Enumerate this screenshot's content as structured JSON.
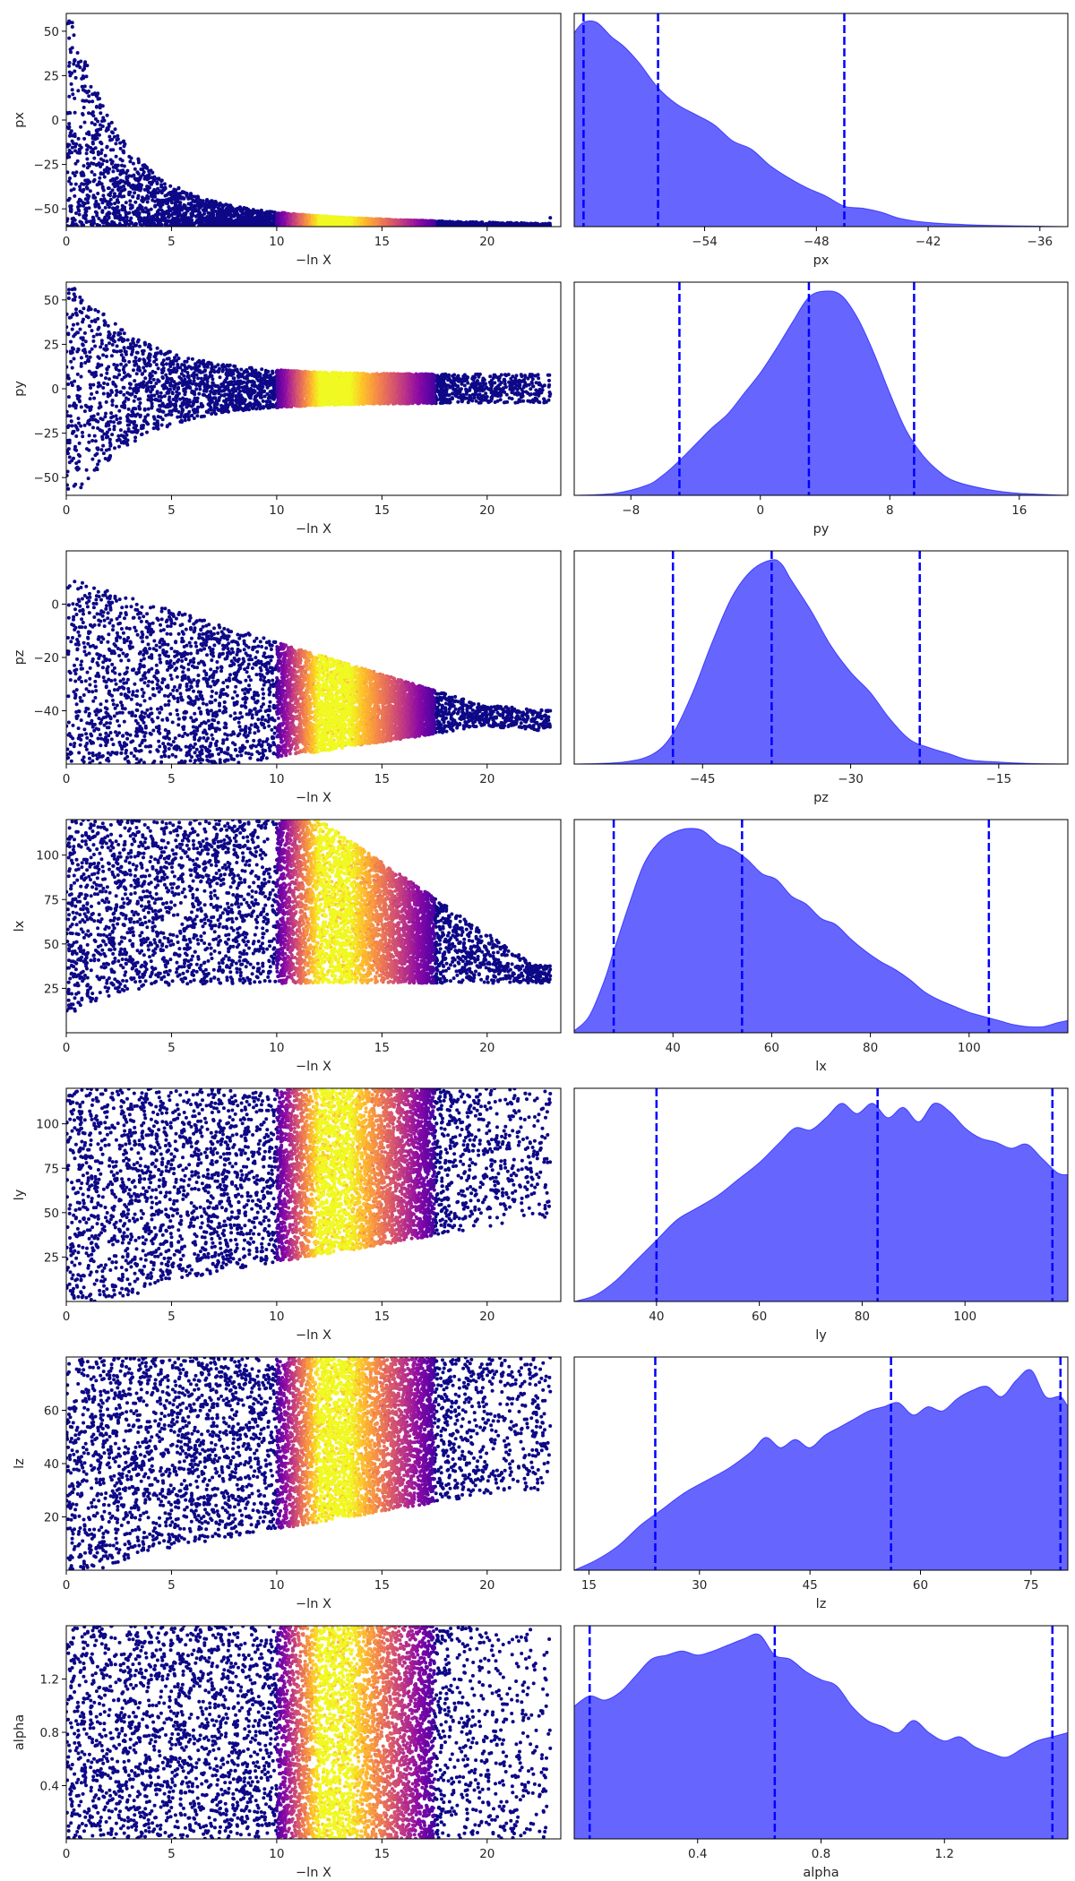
{
  "chart_data": [
    {
      "type": "scatter",
      "name": "trace-px",
      "ylabel": "px",
      "xlabel": "−ln X",
      "xlim": [
        0,
        23.5
      ],
      "ylim": [
        -60,
        60
      ],
      "xticks": [
        0,
        5,
        10,
        15,
        20
      ],
      "yticks": [
        -50,
        -25,
        0,
        25,
        50
      ],
      "ytick_labels": [
        "−50",
        "−25",
        "0",
        "25",
        "50"
      ],
      "colormap": "plasma",
      "highlight_range": [
        10,
        18
      ],
      "max_x": 23
    },
    {
      "type": "area",
      "name": "posterior-px",
      "xlabel": "px",
      "xlim": [
        -61,
        -34.5
      ],
      "xticks": [
        -54,
        -48,
        -42,
        -36
      ],
      "xtick_labels": [
        "−54",
        "−48",
        "−42",
        "−36"
      ],
      "quantiles": [
        -60.5,
        -56.5,
        -46.5
      ],
      "fill_color": "#6666ff",
      "line_color": "#0000ff",
      "density": {
        "x": [
          -61,
          -60.5,
          -59.8,
          -59,
          -58.3,
          -57.5,
          -56.5,
          -55.5,
          -54.5,
          -53.5,
          -52.5,
          -51.5,
          -50.5,
          -49.5,
          -48.5,
          -47.5,
          -46.5,
          -45.5,
          -44.5,
          -43.5,
          -42,
          -40,
          -38,
          -36,
          -34.5
        ],
        "y": [
          0.95,
          1.0,
          1.0,
          0.93,
          0.88,
          0.8,
          0.68,
          0.6,
          0.55,
          0.5,
          0.42,
          0.38,
          0.3,
          0.24,
          0.19,
          0.15,
          0.1,
          0.09,
          0.07,
          0.04,
          0.02,
          0.01,
          0.005,
          0.002,
          0
        ]
      }
    },
    {
      "type": "scatter",
      "name": "trace-py",
      "ylabel": "py",
      "xlabel": "−ln X",
      "xlim": [
        0,
        23.5
      ],
      "ylim": [
        -60,
        60
      ],
      "xticks": [
        0,
        5,
        10,
        15,
        20
      ],
      "yticks": [
        -50,
        -25,
        0,
        25,
        50
      ],
      "ytick_labels": [
        "−50",
        "−25",
        "0",
        "25",
        "50"
      ],
      "colormap": "plasma",
      "highlight_range": [
        10,
        18
      ],
      "max_x": 23
    },
    {
      "type": "area",
      "name": "posterior-py",
      "xlabel": "py",
      "xlim": [
        -11.5,
        19
      ],
      "xticks": [
        -8,
        0,
        8,
        16
      ],
      "xtick_labels": [
        "−8",
        "0",
        "8",
        "16"
      ],
      "quantiles": [
        -5,
        3,
        9.5
      ],
      "fill_color": "#6666ff",
      "line_color": "#0000ff",
      "density": {
        "x": [
          -11.5,
          -9,
          -7,
          -6,
          -5,
          -4,
          -3,
          -2,
          -1,
          0,
          1,
          2,
          3,
          4,
          5,
          6,
          7,
          8,
          9,
          10,
          11,
          12,
          14,
          16,
          19
        ],
        "y": [
          0,
          0.01,
          0.05,
          0.1,
          0.17,
          0.25,
          0.33,
          0.4,
          0.5,
          0.6,
          0.72,
          0.85,
          0.97,
          1.0,
          0.98,
          0.87,
          0.7,
          0.5,
          0.32,
          0.2,
          0.12,
          0.07,
          0.03,
          0.01,
          0
        ]
      }
    },
    {
      "type": "scatter",
      "name": "trace-pz",
      "ylabel": "pz",
      "xlabel": "−ln X",
      "xlim": [
        0,
        23.5
      ],
      "ylim": [
        -60,
        20
      ],
      "xticks": [
        0,
        5,
        10,
        15,
        20
      ],
      "yticks": [
        -40,
        -20,
        0
      ],
      "ytick_labels": [
        "−40",
        "−20",
        "0"
      ],
      "colormap": "plasma",
      "highlight_range": [
        10,
        18
      ],
      "max_x": 23
    },
    {
      "type": "area",
      "name": "posterior-pz",
      "xlabel": "pz",
      "xlim": [
        -58,
        -8
      ],
      "xticks": [
        -45,
        -30,
        -15
      ],
      "xtick_labels": [
        "−45",
        "−30",
        "−15"
      ],
      "quantiles": [
        -48,
        -38,
        -23
      ],
      "fill_color": "#6666ff",
      "line_color": "#0000ff",
      "density": {
        "x": [
          -58,
          -53,
          -50,
          -48,
          -46,
          -44,
          -42,
          -40,
          -38,
          -37,
          -36,
          -34,
          -32,
          -30,
          -28,
          -26,
          -24,
          -22,
          -20,
          -18,
          -15,
          -12,
          -8
        ],
        "y": [
          0,
          0.01,
          0.05,
          0.15,
          0.35,
          0.6,
          0.82,
          0.95,
          1.0,
          0.98,
          0.9,
          0.75,
          0.58,
          0.45,
          0.35,
          0.22,
          0.12,
          0.08,
          0.05,
          0.02,
          0.01,
          0.003,
          0
        ]
      }
    },
    {
      "type": "scatter",
      "name": "trace-lx",
      "ylabel": "lx",
      "xlabel": "−ln X",
      "xlim": [
        0,
        23.5
      ],
      "ylim": [
        0,
        120
      ],
      "xticks": [
        0,
        5,
        10,
        15,
        20
      ],
      "yticks": [
        25,
        50,
        75,
        100
      ],
      "ytick_labels": [
        "25",
        "50",
        "75",
        "100"
      ],
      "colormap": "plasma",
      "highlight_range": [
        10,
        18
      ],
      "max_x": 23
    },
    {
      "type": "area",
      "name": "posterior-lx",
      "xlabel": "lx",
      "xlim": [
        20,
        120
      ],
      "xticks": [
        40,
        60,
        80,
        100
      ],
      "xtick_labels": [
        "40",
        "60",
        "80",
        "100"
      ],
      "quantiles": [
        28,
        54,
        104
      ],
      "fill_color": "#6666ff",
      "line_color": "#0000ff",
      "density": {
        "x": [
          20,
          23,
          26,
          28,
          31,
          34,
          37,
          40,
          43,
          46,
          49,
          52,
          55,
          58,
          61,
          64,
          67,
          70,
          73,
          76,
          79,
          82,
          85,
          88,
          91,
          94,
          97,
          100,
          103,
          106,
          109,
          112,
          115,
          118,
          120
        ],
        "y": [
          0.01,
          0.08,
          0.25,
          0.4,
          0.62,
          0.82,
          0.93,
          0.98,
          1.0,
          0.99,
          0.93,
          0.9,
          0.85,
          0.78,
          0.75,
          0.67,
          0.63,
          0.56,
          0.53,
          0.46,
          0.4,
          0.35,
          0.31,
          0.26,
          0.2,
          0.16,
          0.13,
          0.1,
          0.08,
          0.06,
          0.04,
          0.03,
          0.03,
          0.05,
          0.06
        ]
      }
    },
    {
      "type": "scatter",
      "name": "trace-ly",
      "ylabel": "ly",
      "xlabel": "−ln X",
      "xlim": [
        0,
        23.5
      ],
      "ylim": [
        0,
        120
      ],
      "xticks": [
        0,
        5,
        10,
        15,
        20
      ],
      "yticks": [
        25,
        50,
        75,
        100
      ],
      "ytick_labels": [
        "25",
        "50",
        "75",
        "100"
      ],
      "colormap": "plasma",
      "highlight_range": [
        10,
        18
      ],
      "max_x": 23
    },
    {
      "type": "area",
      "name": "posterior-ly",
      "xlabel": "ly",
      "xlim": [
        24,
        120
      ],
      "xticks": [
        40,
        60,
        80,
        100
      ],
      "xtick_labels": [
        "40",
        "60",
        "80",
        "100"
      ],
      "quantiles": [
        40,
        83,
        117
      ],
      "fill_color": "#6666ff",
      "line_color": "#0000ff",
      "density": {
        "x": [
          24,
          28,
          32,
          36,
          40,
          44,
          48,
          52,
          56,
          60,
          64,
          67,
          70,
          73,
          76,
          79,
          82,
          85,
          88,
          91,
          94,
          97,
          100,
          103,
          106,
          109,
          112,
          115,
          118,
          120
        ],
        "y": [
          0,
          0.03,
          0.1,
          0.2,
          0.3,
          0.4,
          0.46,
          0.52,
          0.6,
          0.68,
          0.78,
          0.85,
          0.84,
          0.9,
          0.97,
          0.92,
          0.97,
          0.9,
          0.95,
          0.88,
          0.97,
          0.93,
          0.85,
          0.8,
          0.78,
          0.75,
          0.77,
          0.7,
          0.63,
          0.62
        ]
      }
    },
    {
      "type": "scatter",
      "name": "trace-lz",
      "ylabel": "lz",
      "xlabel": "−ln X",
      "xlim": [
        0,
        23.5
      ],
      "ylim": [
        0,
        80
      ],
      "xticks": [
        0,
        5,
        10,
        15,
        20
      ],
      "yticks": [
        20,
        40,
        60
      ],
      "ytick_labels": [
        "20",
        "40",
        "60"
      ],
      "colormap": "plasma",
      "highlight_range": [
        10,
        18
      ],
      "max_x": 23
    },
    {
      "type": "area",
      "name": "posterior-lz",
      "xlabel": "lz",
      "xlim": [
        13,
        80
      ],
      "xticks": [
        15,
        30,
        45,
        60,
        75
      ],
      "xtick_labels": [
        "15",
        "30",
        "45",
        "60",
        "75"
      ],
      "quantiles": [
        24,
        56,
        79
      ],
      "fill_color": "#6666ff",
      "line_color": "#0000ff",
      "density": {
        "x": [
          13,
          16,
          19,
          22,
          25,
          28,
          31,
          34,
          37,
          39,
          41,
          43,
          45,
          47,
          49,
          51,
          53,
          55,
          57,
          59,
          61,
          63,
          65,
          67,
          69,
          71,
          73,
          75,
          77,
          79,
          80
        ],
        "y": [
          0,
          0.05,
          0.12,
          0.22,
          0.3,
          0.38,
          0.44,
          0.5,
          0.58,
          0.65,
          0.6,
          0.64,
          0.6,
          0.66,
          0.7,
          0.74,
          0.78,
          0.8,
          0.82,
          0.76,
          0.8,
          0.78,
          0.84,
          0.88,
          0.9,
          0.85,
          0.93,
          0.98,
          0.85,
          0.85,
          0.8
        ]
      }
    },
    {
      "type": "scatter",
      "name": "trace-alpha",
      "ylabel": "alpha",
      "xlabel": "−ln X",
      "xlim": [
        0,
        23.5
      ],
      "ylim": [
        0,
        1.6
      ],
      "xticks": [
        0,
        5,
        10,
        15,
        20
      ],
      "yticks": [
        0.4,
        0.8,
        1.2
      ],
      "ytick_labels": [
        "0.4",
        "0.8",
        "1.2"
      ],
      "colormap": "plasma",
      "highlight_range": [
        10,
        18
      ],
      "max_x": 23
    },
    {
      "type": "area",
      "name": "posterior-alpha",
      "xlabel": "alpha",
      "xlim": [
        0,
        1.6
      ],
      "xticks": [
        0.4,
        0.8,
        1.2
      ],
      "xtick_labels": [
        "0.4",
        "0.8",
        "1.2"
      ],
      "quantiles": [
        0.05,
        0.65,
        1.55
      ],
      "fill_color": "#6666ff",
      "line_color": "#0000ff",
      "density": {
        "x": [
          0,
          0.05,
          0.1,
          0.15,
          0.2,
          0.25,
          0.3,
          0.35,
          0.4,
          0.45,
          0.5,
          0.55,
          0.6,
          0.65,
          0.7,
          0.75,
          0.8,
          0.85,
          0.9,
          0.95,
          1.0,
          1.05,
          1.1,
          1.15,
          1.2,
          1.25,
          1.3,
          1.35,
          1.4,
          1.45,
          1.5,
          1.55,
          1.6
        ],
        "y": [
          0.65,
          0.7,
          0.68,
          0.72,
          0.8,
          0.88,
          0.9,
          0.92,
          0.9,
          0.92,
          0.95,
          0.98,
          1.0,
          0.9,
          0.88,
          0.82,
          0.78,
          0.75,
          0.65,
          0.58,
          0.55,
          0.52,
          0.58,
          0.52,
          0.48,
          0.5,
          0.45,
          0.42,
          0.4,
          0.44,
          0.48,
          0.5,
          0.52
        ]
      }
    }
  ]
}
